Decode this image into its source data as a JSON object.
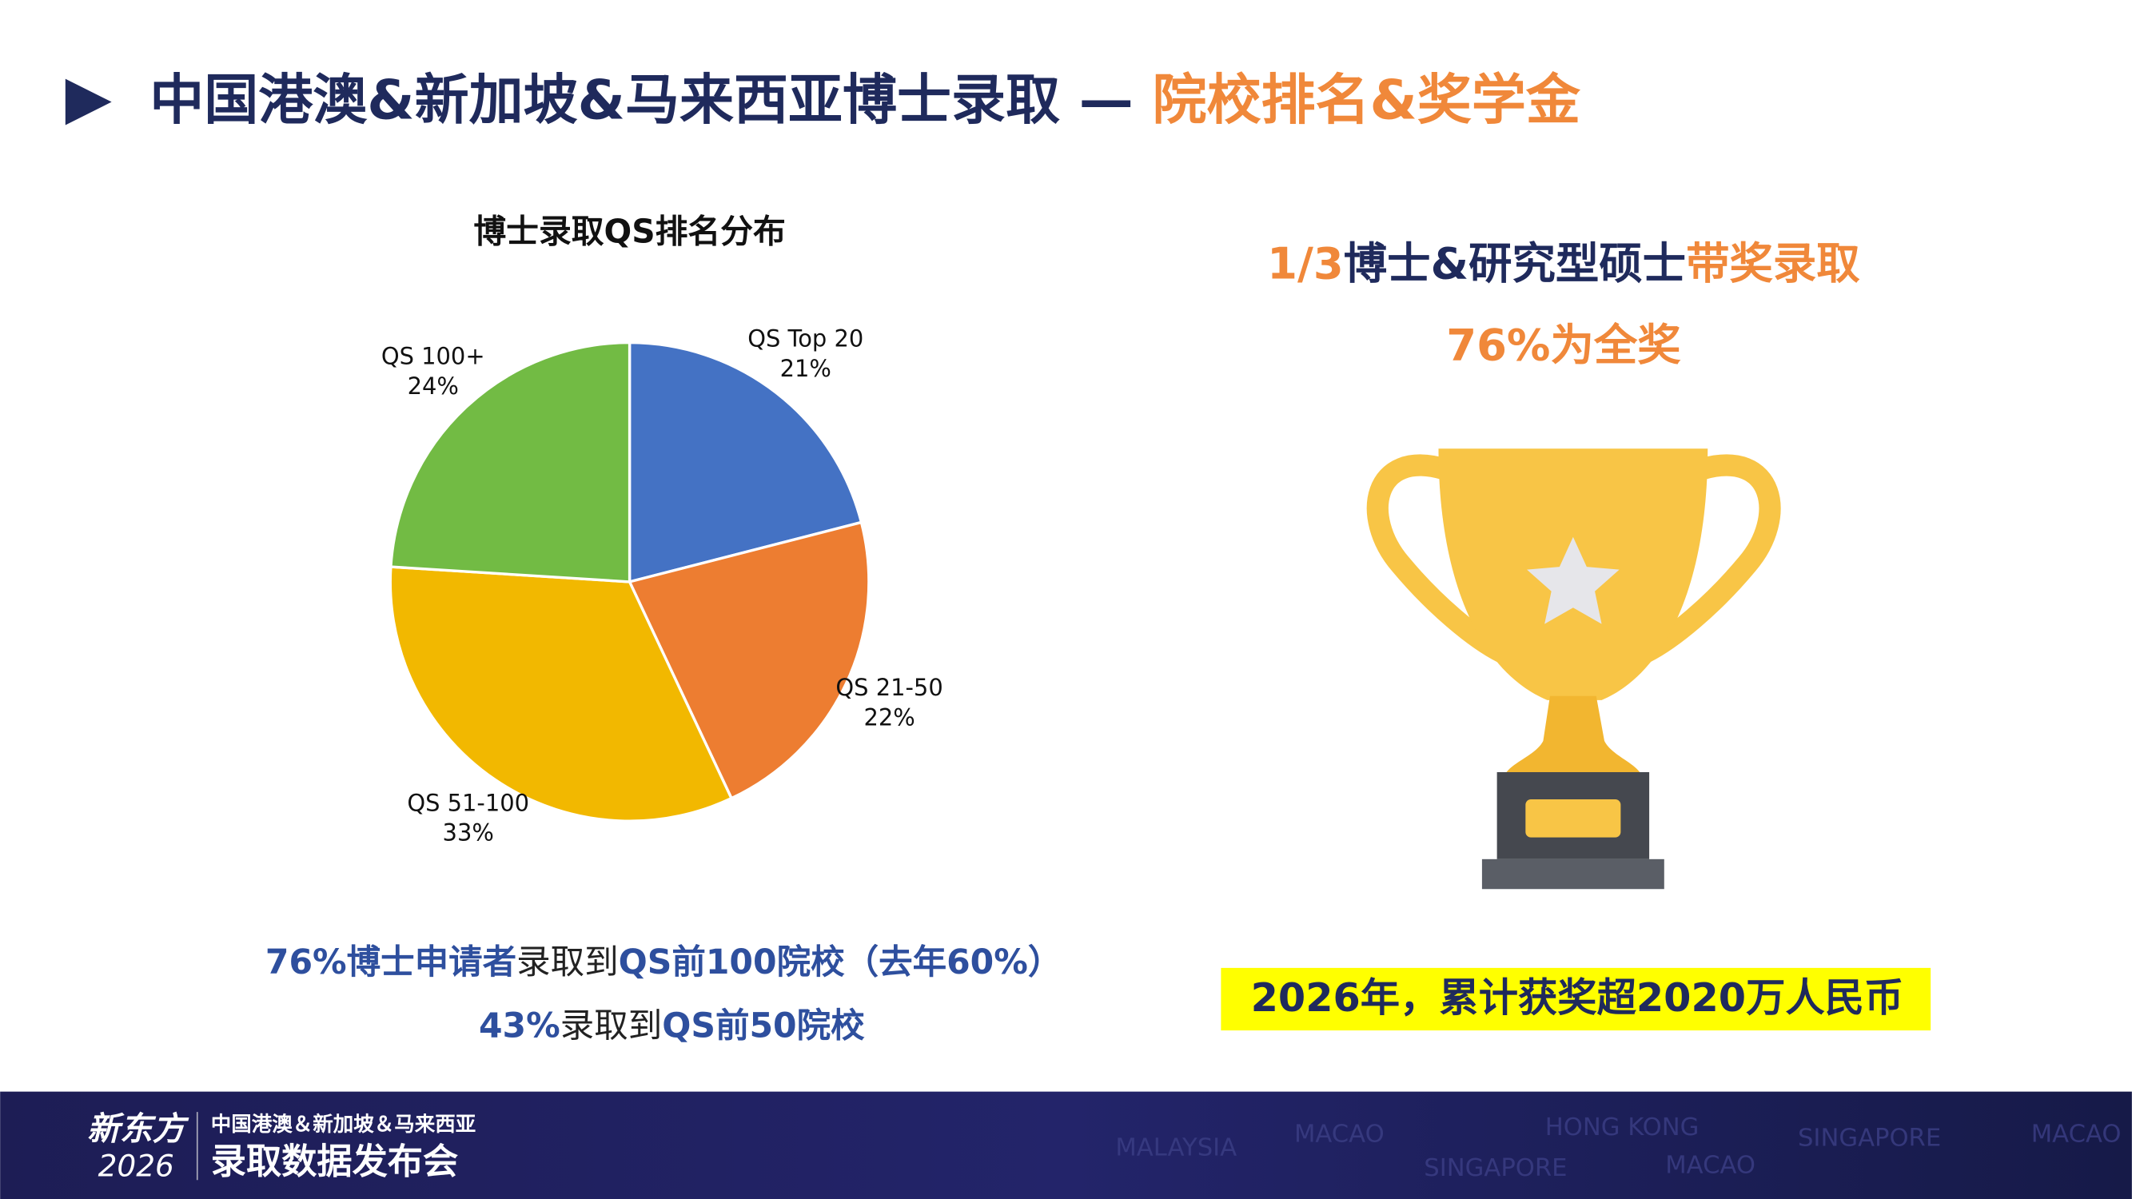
{
  "header": {
    "title_main": "中国港澳&新加坡&马来西亚博士录取 — ",
    "title_accent": "院校排名&奖学金"
  },
  "chart_data": {
    "type": "pie",
    "title": "博士录取QS排名分布",
    "categories": [
      "QS Top 20",
      "QS 21-50",
      "QS 51-100",
      "QS 100+"
    ],
    "values": [
      21,
      22,
      33,
      24
    ],
    "value_labels": [
      "21%",
      "22%",
      "33%",
      "24%"
    ],
    "colors": [
      "#4472c4",
      "#ed7d31",
      "#f2b800",
      "#72bb44"
    ]
  },
  "left_notes": {
    "line1": [
      "76%博士申请者",
      "录取到",
      "QS前100院校（去年60%）"
    ],
    "line2": [
      "43%",
      "录取到",
      "QS前50院校"
    ]
  },
  "right_notes": {
    "line1": [
      "1/3",
      "博士&研究型硕士",
      "带奖录取"
    ],
    "line2": "76%为全奖",
    "highlight": "2026年，累计获奖超2020万人民币"
  },
  "footer": {
    "logo": "新东方",
    "year": "2026",
    "subtitle": "中国港澳＆新加坡＆马来西亚",
    "event": "录取数据发布会",
    "places": [
      "MALAYSIA",
      "MACAO",
      "HONG KONG",
      "SINGAPORE",
      "MACAO",
      "SINGAPORE",
      "MACAO"
    ]
  }
}
